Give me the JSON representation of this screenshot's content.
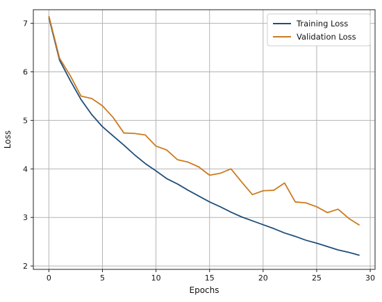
{
  "chart_data": {
    "type": "line",
    "xlabel": "Epochs",
    "ylabel": "Loss",
    "xlim": [
      -1.45,
      30.45
    ],
    "ylim": [
      1.93,
      7.28
    ],
    "xticks": [
      0,
      5,
      10,
      15,
      20,
      25,
      30
    ],
    "yticks": [
      2,
      3,
      4,
      5,
      6,
      7
    ],
    "grid": true,
    "legend_position": "top-right",
    "x": [
      0,
      1,
      2,
      3,
      4,
      5,
      6,
      7,
      8,
      9,
      10,
      11,
      12,
      13,
      14,
      15,
      16,
      17,
      18,
      19,
      20,
      21,
      22,
      23,
      24,
      25,
      26,
      27,
      28,
      29
    ],
    "series": [
      {
        "name": "Training Loss",
        "color": "#1f4e79",
        "values": [
          7.12,
          6.24,
          5.82,
          5.43,
          5.12,
          4.87,
          4.68,
          4.49,
          4.29,
          4.11,
          3.96,
          3.8,
          3.69,
          3.56,
          3.44,
          3.32,
          3.22,
          3.11,
          3.01,
          2.93,
          2.85,
          2.77,
          2.68,
          2.61,
          2.53,
          2.47,
          2.4,
          2.33,
          2.28,
          2.22
        ]
      },
      {
        "name": "Validation Loss",
        "color": "#cc7a1e",
        "values": [
          7.15,
          6.28,
          5.92,
          5.5,
          5.45,
          5.3,
          5.06,
          4.74,
          4.73,
          4.7,
          4.47,
          4.39,
          4.19,
          4.14,
          4.04,
          3.87,
          3.91,
          4.0,
          3.73,
          3.47,
          3.55,
          3.56,
          3.71,
          3.32,
          3.3,
          3.22,
          3.1,
          3.17,
          2.98,
          2.84
        ]
      }
    ]
  }
}
